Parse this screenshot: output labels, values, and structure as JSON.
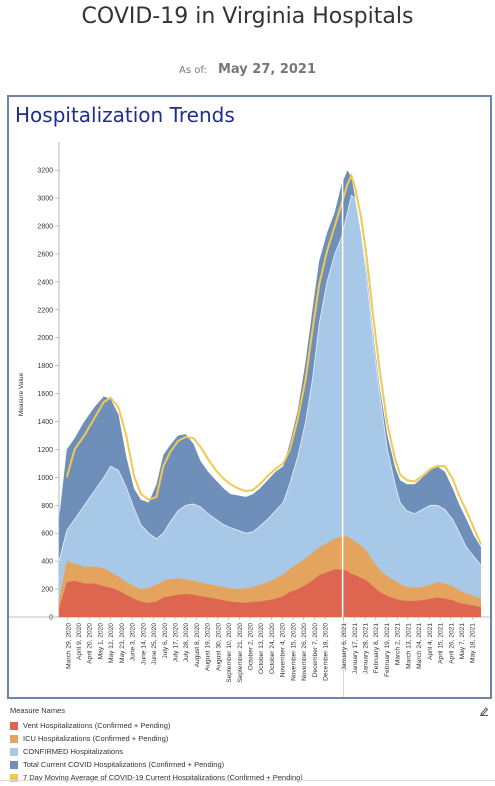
{
  "page_title": "COVID-19 in Virginia Hospitals",
  "as_of_label": "As of:",
  "as_of_value": "May 27, 2021",
  "panel_title": "Hospitalization Trends",
  "legend": {
    "title": "Measure Names",
    "items": [
      {
        "label": "Vent Hospitalizations (Confirmed + Pending)",
        "color": "#de6651"
      },
      {
        "label": "ICU Hospitalizations (Confirmed + Pending)",
        "color": "#e4a45e"
      },
      {
        "label": "CONFIRMED Hospitalizations",
        "color": "#a7c8e6"
      },
      {
        "label": "Total Current COVID Hospitalizations (Confirmed + Pending)",
        "color": "#6f8fbb"
      },
      {
        "label": "7 Day Moving Average of COVID-19 Current Hospitalizations (Confirmed + Pending)",
        "color": "#f0c94f"
      }
    ]
  },
  "chart_data": {
    "type": "area",
    "ylabel": "Measure Value",
    "ylim": [
      0,
      3200
    ],
    "yticks": [
      0,
      200,
      400,
      600,
      800,
      1000,
      1200,
      1400,
      1600,
      1800,
      2000,
      2200,
      2400,
      2600,
      2800,
      3000,
      3200
    ],
    "x_start": "2020-03-20",
    "x_end": "2021-05-27",
    "reference_line": "2021-01-05",
    "xtick_labels": [
      "March 29, 2020",
      "April 9, 2020",
      "April 20, 2020",
      "May 1, 2020",
      "May 12, 2020",
      "May 23, 2020",
      "June 3, 2020",
      "June 14, 2020",
      "June 25, 2020",
      "July 6, 2020",
      "July 17, 2020",
      "July 28, 2020",
      "August 8, 2020",
      "August 19, 2020",
      "August 30, 2020",
      "September 10, 2020",
      "September 21, 2020",
      "October 2, 2020",
      "October 13, 2020",
      "October 24, 2020",
      "November 4, 2020",
      "November 15, 2020",
      "November 26, 2020",
      "December 7, 2020",
      "December 18, 2020",
      "January 6, 2021",
      "January 17, 2021",
      "January 28, 2021",
      "February 8, 2021",
      "February 19, 2021",
      "March 2, 2021",
      "March 13, 2021",
      "March 24, 2021",
      "April 4, 2021",
      "April 15, 2021",
      "April 26, 2021",
      "May 7, 2021",
      "May 18, 2021"
    ],
    "xtick_dates": [
      "2020-03-29",
      "2020-04-09",
      "2020-04-20",
      "2020-05-01",
      "2020-05-12",
      "2020-05-23",
      "2020-06-03",
      "2020-06-14",
      "2020-06-25",
      "2020-07-06",
      "2020-07-17",
      "2020-07-28",
      "2020-08-08",
      "2020-08-19",
      "2020-08-30",
      "2020-09-10",
      "2020-09-21",
      "2020-10-02",
      "2020-10-13",
      "2020-10-24",
      "2020-11-04",
      "2020-11-15",
      "2020-11-26",
      "2020-12-07",
      "2020-12-18",
      "2021-01-06",
      "2021-01-17",
      "2021-01-28",
      "2021-02-08",
      "2021-02-19",
      "2021-03-02",
      "2021-03-13",
      "2021-03-24",
      "2021-04-04",
      "2021-04-15",
      "2021-04-26",
      "2021-05-07",
      "2021-05-18"
    ],
    "x": [
      "2020-03-20",
      "2020-03-28",
      "2020-04-05",
      "2020-04-15",
      "2020-04-25",
      "2020-05-05",
      "2020-05-12",
      "2020-05-20",
      "2020-05-28",
      "2020-06-05",
      "2020-06-12",
      "2020-06-20",
      "2020-06-28",
      "2020-07-05",
      "2020-07-12",
      "2020-07-20",
      "2020-07-28",
      "2020-08-05",
      "2020-08-12",
      "2020-08-20",
      "2020-08-28",
      "2020-09-05",
      "2020-09-12",
      "2020-09-20",
      "2020-09-28",
      "2020-10-05",
      "2020-10-12",
      "2020-10-20",
      "2020-10-28",
      "2020-11-05",
      "2020-11-12",
      "2020-11-20",
      "2020-11-28",
      "2020-12-05",
      "2020-12-12",
      "2020-12-20",
      "2020-12-28",
      "2021-01-04",
      "2021-01-10",
      "2021-01-14",
      "2021-01-18",
      "2021-01-24",
      "2021-01-30",
      "2021-02-05",
      "2021-02-12",
      "2021-02-20",
      "2021-02-28",
      "2021-03-05",
      "2021-03-12",
      "2021-03-20",
      "2021-03-28",
      "2021-04-05",
      "2021-04-12",
      "2021-04-20",
      "2021-04-28",
      "2021-05-05",
      "2021-05-12",
      "2021-05-20",
      "2021-05-27"
    ],
    "series": [
      {
        "name": "Vent Hospitalizations (Confirmed + Pending)",
        "color": "#de6651",
        "values": [
          60,
          250,
          260,
          240,
          240,
          220,
          210,
          190,
          160,
          130,
          110,
          100,
          110,
          140,
          150,
          160,
          165,
          160,
          150,
          140,
          130,
          120,
          110,
          105,
          100,
          110,
          110,
          120,
          130,
          150,
          180,
          200,
          230,
          260,
          300,
          320,
          340,
          340,
          330,
          310,
          300,
          280,
          260,
          220,
          180,
          150,
          130,
          120,
          115,
          115,
          120,
          130,
          140,
          130,
          120,
          100,
          90,
          80,
          70
        ]
      },
      {
        "name": "ICU Hospitalizations (Confirmed + Pending)",
        "color": "#e4a45e",
        "values": [
          120,
          400,
          380,
          360,
          360,
          350,
          320,
          290,
          250,
          220,
          200,
          210,
          230,
          260,
          270,
          275,
          270,
          260,
          250,
          235,
          225,
          215,
          205,
          200,
          205,
          215,
          230,
          250,
          275,
          305,
          345,
          380,
          420,
          460,
          500,
          530,
          560,
          580,
          575,
          560,
          540,
          510,
          470,
          400,
          340,
          290,
          260,
          235,
          215,
          210,
          215,
          230,
          250,
          240,
          220,
          190,
          170,
          150,
          130
        ]
      },
      {
        "name": "CONFIRMED Hospitalizations",
        "color": "#a7c8e6",
        "values": [
          400,
          620,
          700,
          800,
          900,
          1000,
          1080,
          1050,
          930,
          780,
          660,
          600,
          560,
          600,
          680,
          760,
          800,
          810,
          790,
          740,
          700,
          660,
          640,
          620,
          600,
          610,
          650,
          700,
          760,
          820,
          960,
          1150,
          1400,
          1700,
          2100,
          2400,
          2600,
          2720,
          2900,
          3020,
          3000,
          2750,
          2400,
          2000,
          1600,
          1200,
          950,
          820,
          760,
          740,
          770,
          800,
          800,
          770,
          700,
          600,
          500,
          430,
          370
        ]
      },
      {
        "name": "Total Current COVID Hospitalizations (Confirmed + Pending)",
        "color": "#6f8fbb",
        "values": [
          700,
          1200,
          1280,
          1400,
          1500,
          1580,
          1560,
          1450,
          1150,
          920,
          840,
          820,
          950,
          1160,
          1230,
          1300,
          1310,
          1240,
          1120,
          1040,
          980,
          920,
          880,
          870,
          860,
          880,
          920,
          980,
          1040,
          1080,
          1250,
          1480,
          1830,
          2200,
          2550,
          2750,
          2900,
          3100,
          3200,
          3150,
          3000,
          2750,
          2450,
          2050,
          1650,
          1300,
          1070,
          980,
          950,
          950,
          1000,
          1050,
          1080,
          1040,
          920,
          800,
          700,
          580,
          500
        ]
      },
      {
        "name": "7 Day Moving Average of COVID-19 Current Hospitalizations (Confirmed + Pending)",
        "color": "#f0c94f",
        "values": [
          null,
          1000,
          1200,
          1300,
          1420,
          1540,
          1570,
          1500,
          1300,
          1010,
          880,
          840,
          860,
          1080,
          1180,
          1260,
          1290,
          1280,
          1220,
          1130,
          1050,
          990,
          950,
          920,
          900,
          910,
          950,
          1010,
          1060,
          1100,
          1200,
          1420,
          1700,
          2050,
          2380,
          2620,
          2800,
          2960,
          3100,
          3160,
          3070,
          2860,
          2560,
          2180,
          1770,
          1380,
          1130,
          1020,
          980,
          970,
          1010,
          1060,
          1080,
          1080,
          990,
          860,
          760,
          630,
          520
        ]
      }
    ]
  }
}
